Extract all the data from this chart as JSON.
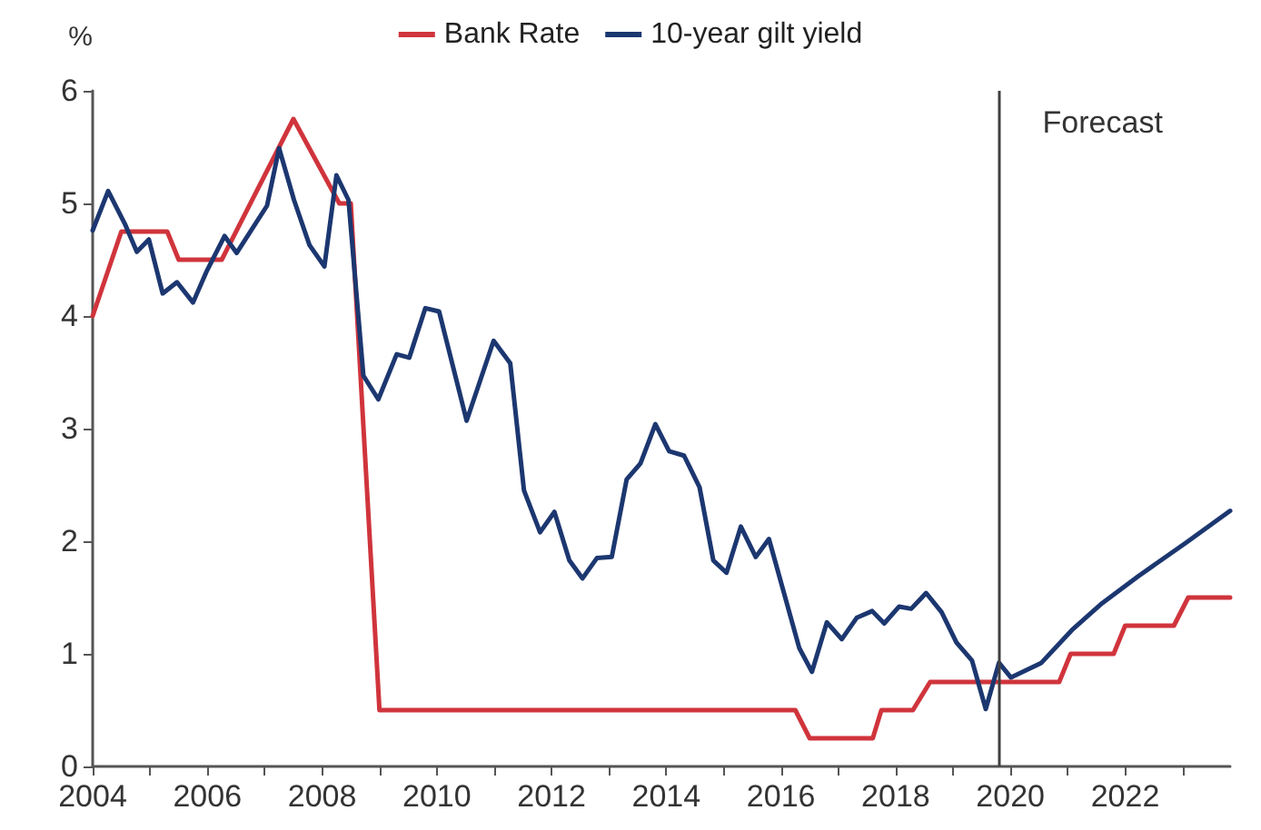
{
  "chart_data": {
    "type": "line",
    "ylabel": "%",
    "xlim": [
      2004,
      2023.83
    ],
    "ylim": [
      0,
      6
    ],
    "xticks": [
      2004,
      {
        "value": 2005,
        "label": null
      },
      2006,
      {
        "value": 2007,
        "label": null
      },
      2008,
      {
        "value": 2009,
        "label": null
      },
      2010,
      {
        "value": 2011,
        "label": null
      },
      2012,
      {
        "value": 2013,
        "label": null
      },
      2014,
      {
        "value": 2015,
        "label": null
      },
      2016,
      {
        "value": 2017,
        "label": null
      },
      2018,
      {
        "value": 2019,
        "label": null
      },
      2020,
      {
        "value": 2021,
        "label": null
      },
      2022,
      {
        "value": 2023,
        "label": null
      }
    ],
    "yticks": [
      0,
      1,
      2,
      3,
      4,
      5,
      6
    ],
    "grid": false,
    "legend": "top",
    "marker": "none",
    "line_style": "solid",
    "ref_lines": [
      {
        "axis": "x",
        "value": 2019.8,
        "label": "Forecast",
        "color": "#404040"
      }
    ],
    "series": [
      {
        "name": "Bank Rate",
        "color": "#d0343c",
        "x": [
          2004,
          2004.5,
          2005.3,
          2005.5,
          2006.25,
          2007.5,
          2008.3,
          2008.5,
          2009,
          2016.25,
          2016.5,
          2017.6,
          2017.75,
          2018.3,
          2018.6,
          2020.85,
          2021.05,
          2021.8,
          2022,
          2022.85,
          2023.1,
          2023.83
        ],
        "values": [
          4,
          4.75,
          4.75,
          4.5,
          4.5,
          5.75,
          5,
          5,
          0.5,
          0.5,
          0.25,
          0.25,
          0.5,
          0.5,
          0.75,
          0.75,
          1,
          1,
          1.25,
          1.25,
          1.5,
          1.5
        ]
      },
      {
        "name": "10-year gilt yield",
        "color": "#1c3770",
        "x": [
          2004,
          2004.27,
          2004.56,
          2004.77,
          2004.98,
          2005.22,
          2005.47,
          2005.75,
          2005.98,
          2006.3,
          2006.51,
          2007.04,
          2007.25,
          2007.51,
          2007.78,
          2008.04,
          2008.25,
          2008.46,
          2008.72,
          2008.98,
          2009.3,
          2009.52,
          2009.8,
          2010.04,
          2010.52,
          2010.99,
          2011.28,
          2011.52,
          2011.8,
          2012.05,
          2012.31,
          2012.54,
          2012.79,
          2013.05,
          2013.31,
          2013.55,
          2013.81,
          2014.05,
          2014.31,
          2014.58,
          2014.82,
          2015.05,
          2015.3,
          2015.56,
          2015.79,
          2016.32,
          2016.54,
          2016.8,
          2017.06,
          2017.32,
          2017.59,
          2017.8,
          2018.06,
          2018.27,
          2018.53,
          2018.8,
          2019.06,
          2019.33,
          2019.57,
          2019.8,
          2020.01,
          2020.54,
          2021.07,
          2021.6,
          2022.23,
          2023.07,
          2023.83
        ],
        "values": [
          4.76,
          5.11,
          4.82,
          4.57,
          4.68,
          4.2,
          4.3,
          4.12,
          4.39,
          4.71,
          4.56,
          4.98,
          5.49,
          5.03,
          4.63,
          4.44,
          5.25,
          5.03,
          3.47,
          3.26,
          3.66,
          3.63,
          4.07,
          4.04,
          3.07,
          3.78,
          3.58,
          2.45,
          2.08,
          2.26,
          1.83,
          1.67,
          1.85,
          1.86,
          2.55,
          2.69,
          3.04,
          2.8,
          2.76,
          2.48,
          1.83,
          1.72,
          2.13,
          1.86,
          2.02,
          1.05,
          0.84,
          1.28,
          1.13,
          1.32,
          1.38,
          1.27,
          1.42,
          1.4,
          1.54,
          1.37,
          1.1,
          0.94,
          0.51,
          0.92,
          0.79,
          0.92,
          1.21,
          1.45,
          1.69,
          1.99,
          2.27
        ]
      }
    ]
  }
}
